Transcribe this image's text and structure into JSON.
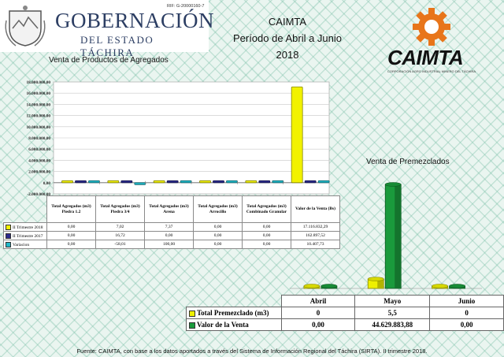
{
  "header": {
    "gov_name": "GOBERNACIÓN",
    "gov_sub": "DEL ESTADO TÁCHIRA",
    "rif": "RIF: G-20000160-7",
    "title": "CAIMTA",
    "subtitle": "Período de Abril a Junio 2018",
    "logo_text": "CAIMTA",
    "logo_tagline": "CORPORACIÓN AGRO INDUSTRIAL MINERO DEL TÁCHIRA"
  },
  "footer": {
    "source": "Fuente: CAIMTA, con base a los datos aportados a través del Sistema de Información Regional del Táchira (SIRTA). II trimestre 2018."
  },
  "colors": {
    "q2018": "#f2f200",
    "q2017": "#2a2a8c",
    "var": "#20b8c8",
    "total": "#eef000",
    "valor": "#1a9a3c"
  },
  "chart_data": [
    {
      "type": "bar",
      "title": "Venta de Productos de Agregados",
      "categories": [
        "Total Agregados (m3) Piedra 1.2",
        "Total Agregados (m3) Piedra 3/4",
        "Total Agregados (m3) Arena",
        "Total Agregados (m3) Arrocillo",
        "Total Agregados (m3) Combinado Granular",
        "Valor de la Venta (Bs)"
      ],
      "y_ticks": [
        "-2.000.000,00",
        "0,00",
        "2.000.000,00",
        "4.000.000,00",
        "6.000.000,00",
        "8.000.000,00",
        "10.000.000,00",
        "12.000.000,00",
        "14.000.000,00",
        "16.000.000,00",
        "18.000.000,00"
      ],
      "ylim": [
        -2000000,
        18000000
      ],
      "series": [
        {
          "name": "II Trimestre 2018",
          "values": [
            0,
            7.02,
            7.37,
            0,
            0,
            17116832.29
          ],
          "labels": [
            "0,00",
            "7,02",
            "7,37",
            "0,00",
            "0,00",
            "17.116.832,29"
          ]
        },
        {
          "name": "II Trimestre 2017",
          "values": [
            0,
            16.72,
            0,
            0,
            0,
            162897.52
          ],
          "labels": [
            "0,00",
            "16,72",
            "0,00",
            "0,00",
            "0,00",
            "162.897,52"
          ]
        },
        {
          "name": "Variacion",
          "values": [
            0,
            -58.01,
            100,
            0,
            0,
            10407.73
          ],
          "labels": [
            "0,00",
            "-58,01",
            "100,00",
            "0,00",
            "0,00",
            "10.407,73"
          ]
        }
      ]
    },
    {
      "type": "bar",
      "title": "Venta de Premezclados",
      "categories": [
        "Abril",
        "Mayo",
        "Junio"
      ],
      "series": [
        {
          "name": "Total Premezclado (m3)",
          "values": [
            0,
            5.5,
            0
          ],
          "labels": [
            "0",
            "5,5",
            "0"
          ]
        },
        {
          "name": "Valor de la Venta",
          "values": [
            0,
            44629883.88,
            0
          ],
          "labels": [
            "0,00",
            "44.629.883,88",
            "0,00"
          ]
        }
      ]
    }
  ]
}
